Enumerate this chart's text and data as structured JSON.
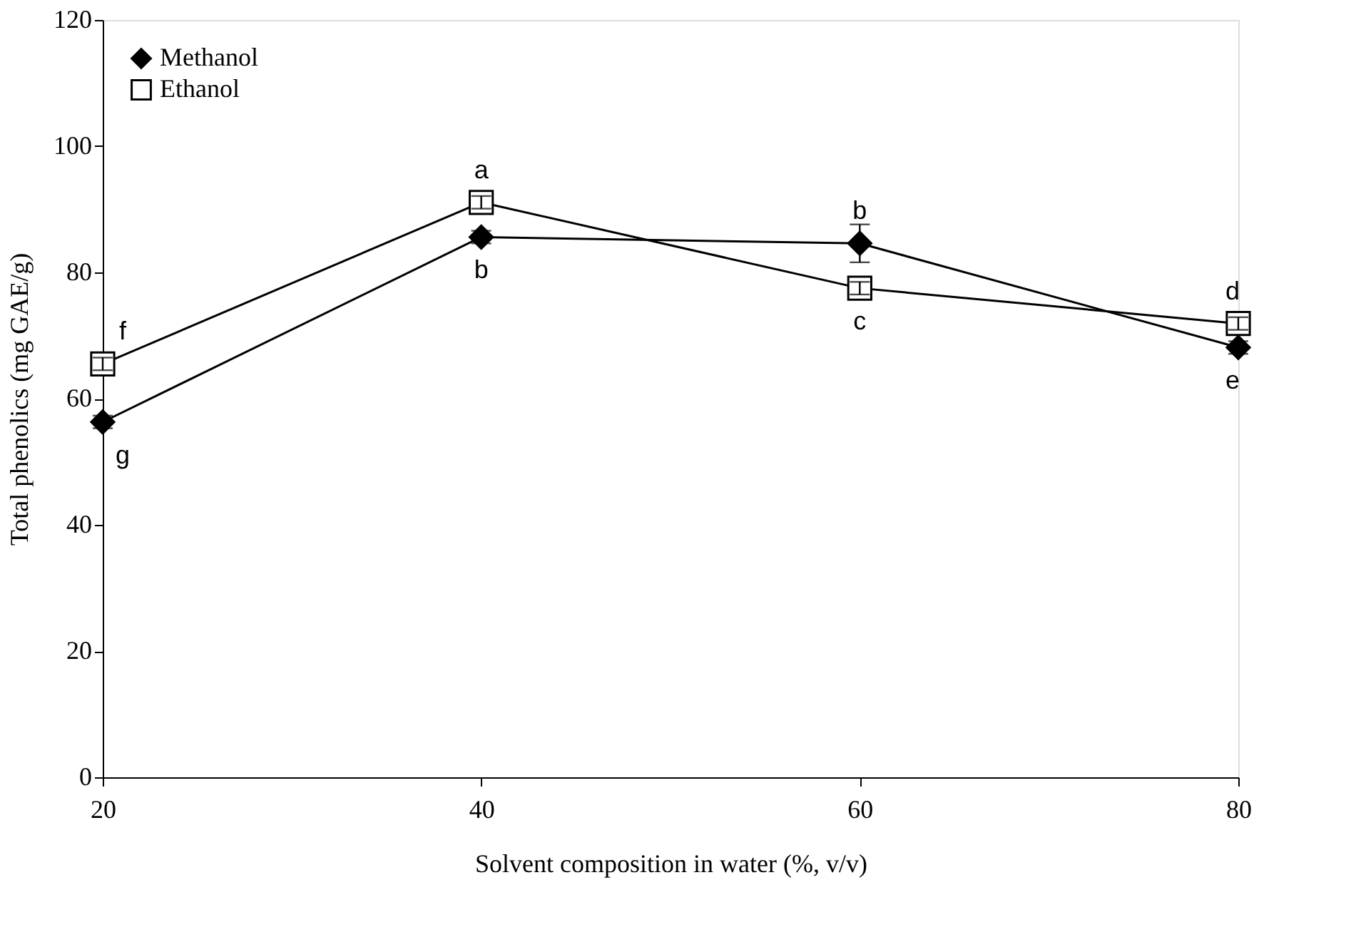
{
  "chart_data": {
    "type": "line",
    "xlabel": "Solvent composition in water (%, v/v)",
    "ylabel": "Total phenolics (mg GAE/g)",
    "x": [
      20,
      40,
      60,
      80
    ],
    "xlim": [
      20,
      80
    ],
    "xticks": [
      20,
      40,
      60,
      80
    ],
    "ylim": [
      0,
      120
    ],
    "yticks": [
      0,
      20,
      40,
      60,
      80,
      100,
      120
    ],
    "grid": false,
    "legend": "top left",
    "line_style": "solid",
    "series": [
      {
        "name": "Methanol",
        "color": "#000000",
        "marker": "diamond",
        "values": [
          56.3,
          85.6,
          84.6,
          68.1
        ],
        "errors": [
          1,
          1,
          3,
          1
        ]
      },
      {
        "name": "Ethanol",
        "color": "#000000",
        "marker": "square",
        "values": [
          65.5,
          91.1,
          77.5,
          71.9
        ],
        "errors": [
          1,
          1,
          1,
          1
        ]
      }
    ],
    "annotations": [
      {
        "text": "a",
        "x": 40,
        "y": 91.1
      },
      {
        "text": "b",
        "x": 40,
        "y": 85.6
      },
      {
        "text": "b",
        "x": 60,
        "y": 84.6
      },
      {
        "text": "c",
        "x": 60,
        "y": 77.5
      },
      {
        "text": "d",
        "x": 80,
        "y": 71.9
      },
      {
        "text": "e",
        "x": 80,
        "y": 68.1
      },
      {
        "text": "f",
        "x": 20,
        "y": 65.5
      },
      {
        "text": "g",
        "x": 20,
        "y": 56.3
      }
    ]
  }
}
